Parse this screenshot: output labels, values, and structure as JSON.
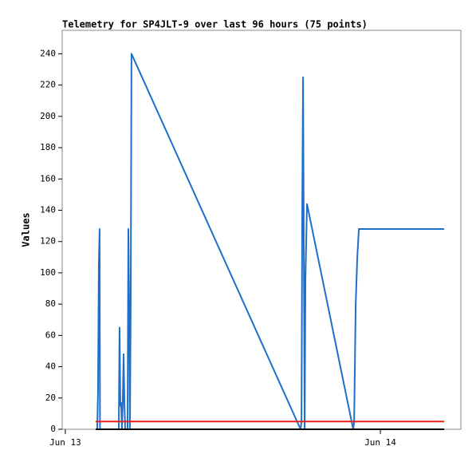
{
  "chart_data": {
    "type": "line",
    "title": "Telemetry for SP4JLT-9 over last 96 hours (75 points)",
    "y_label": "Values",
    "xlim": [
      -0.24,
      30.13
    ],
    "xticks": [
      {
        "value": 0,
        "label": "Jun 13"
      },
      {
        "value": 24,
        "label": "Jun 14"
      }
    ],
    "ylim": [
      0,
      255
    ],
    "yticks": [
      0,
      20,
      40,
      60,
      80,
      100,
      120,
      140,
      160,
      180,
      200,
      220,
      240
    ],
    "series": [
      {
        "color": "#1f6fc8",
        "x": [
          2.43,
          2.49,
          2.55,
          2.61,
          2.64,
          4.07,
          4.13,
          4.19,
          4.25,
          4.31,
          4.37,
          4.44,
          4.5,
          4.56,
          4.74,
          4.8,
          4.86,
          4.92,
          4.98,
          5.04,
          17.92,
          17.99,
          18.05,
          18.11,
          18.17,
          18.23,
          18.29,
          18.41,
          21.93,
          22.0,
          22.12,
          22.24,
          22.36,
          28.86
        ],
        "values": [
          0,
          24,
          104,
          128,
          0,
          0,
          65,
          15,
          17,
          0,
          16,
          48,
          17,
          0,
          0,
          128,
          80,
          0,
          80,
          240,
          0,
          5,
          145,
          225,
          110,
          0,
          96,
          144,
          0,
          5,
          80,
          110,
          128,
          128
        ]
      },
      {
        "color": "#e8201a",
        "x": [
          2.31,
          28.86
        ],
        "values": [
          5,
          5
        ]
      },
      {
        "color": "#000000",
        "x": [
          2.31,
          28.86
        ],
        "values": [
          0,
          0
        ]
      }
    ]
  }
}
